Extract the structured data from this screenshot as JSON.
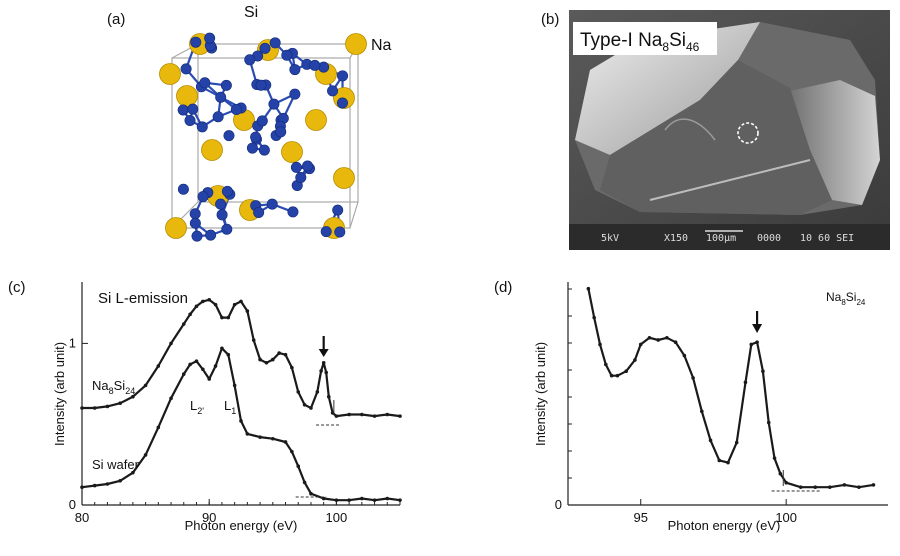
{
  "panel_labels": {
    "a": "(a)",
    "b": "(b)",
    "c": "(c)",
    "d": "(d)"
  },
  "panel_a": {
    "si_label": "Si",
    "na_label": "Na",
    "colors": {
      "si": "#2442a8",
      "na": "#e8b90c",
      "edge": "#a9a9a9"
    }
  },
  "panel_b": {
    "title_main": "Type-I Na",
    "title_sub1": "8",
    "title_mid": "Si",
    "title_sub2": "46",
    "footer": [
      "5kV",
      "X150",
      "100µm",
      "0000",
      "10 60 SEI"
    ]
  },
  "chart_data": [
    {
      "type": "line",
      "panel": "c",
      "annotation": "Si L-emission",
      "xlabel": "Photon energy (eV)",
      "ylabel": "Intensity (arb unit)",
      "xlim": [
        80,
        105
      ],
      "ylim": [
        0,
        1.38
      ],
      "xticks": [
        80,
        90,
        100
      ],
      "yticks": [
        0,
        1
      ],
      "tick_labels_x": [
        "80",
        "90",
        "100"
      ],
      "tick_labels_y": [
        "0",
        "1"
      ],
      "series": [
        {
          "name_main": "Na",
          "name_sub1": "8",
          "name_mid": "Si",
          "name_sub2": "24",
          "x": [
            80,
            81,
            82,
            83,
            84,
            85,
            86,
            87,
            88,
            88.5,
            89,
            89.5,
            90,
            90.5,
            91,
            91.5,
            92,
            92.5,
            93,
            93.5,
            94,
            94.5,
            95,
            95.5,
            96,
            96.5,
            97,
            97.5,
            98,
            98.5,
            98.8,
            99,
            99.2,
            99.4,
            99.7,
            100,
            101,
            102,
            103,
            104,
            105
          ],
          "y": [
            0.6,
            0.6,
            0.61,
            0.63,
            0.67,
            0.74,
            0.86,
            1.0,
            1.12,
            1.18,
            1.23,
            1.26,
            1.27,
            1.24,
            1.16,
            1.16,
            1.24,
            1.26,
            1.2,
            1.02,
            0.9,
            0.88,
            0.9,
            0.94,
            0.93,
            0.85,
            0.7,
            0.62,
            0.6,
            0.7,
            0.83,
            0.88,
            0.82,
            0.67,
            0.57,
            0.55,
            0.56,
            0.56,
            0.55,
            0.56,
            0.55
          ]
        },
        {
          "name": "Si wafer",
          "x": [
            80,
            81,
            82,
            83,
            84,
            85,
            86,
            87,
            88,
            88.5,
            89,
            89.5,
            90,
            90.5,
            91,
            91.5,
            92,
            92.5,
            93,
            94,
            95,
            96,
            96.5,
            97,
            97.5,
            98,
            99,
            100,
            101,
            102,
            103,
            104,
            105
          ],
          "y": [
            0.11,
            0.12,
            0.13,
            0.15,
            0.2,
            0.31,
            0.48,
            0.66,
            0.81,
            0.87,
            0.89,
            0.84,
            0.78,
            0.86,
            0.97,
            0.93,
            0.74,
            0.52,
            0.44,
            0.42,
            0.41,
            0.39,
            0.33,
            0.24,
            0.14,
            0.07,
            0.04,
            0.03,
            0.03,
            0.04,
            0.03,
            0.04,
            0.03
          ]
        }
      ],
      "annotations": {
        "peak_L2": "L",
        "peak_L2_sub": "2'",
        "peak_L1": "L",
        "peak_L1_sub": "1",
        "arrow_x": 99
      }
    },
    {
      "type": "line",
      "panel": "d",
      "legend_main": "Na",
      "legend_sub1": "8",
      "legend_mid": "Si",
      "legend_sub2": "24",
      "xlabel": "Photon energy (eV)",
      "ylabel": "Intensity (arb unit)",
      "xlim": [
        92.5,
        103.5
      ],
      "ylim": [
        0,
        1.0
      ],
      "xticks": [
        95,
        100
      ],
      "yticks": [
        0
      ],
      "tick_labels_x": [
        "95",
        "100"
      ],
      "tick_labels_y": [
        "0"
      ],
      "series": [
        {
          "name": "Na8Si24",
          "x": [
            93.2,
            93.4,
            93.6,
            93.8,
            94.0,
            94.2,
            94.5,
            94.8,
            95.0,
            95.3,
            95.6,
            95.9,
            96.2,
            96.5,
            96.8,
            97.1,
            97.4,
            97.7,
            98.0,
            98.3,
            98.6,
            98.8,
            99.0,
            99.2,
            99.4,
            99.6,
            99.8,
            100.0,
            100.5,
            101,
            101.5,
            102,
            102.5,
            103.0
          ],
          "y": [
            0.97,
            0.84,
            0.72,
            0.63,
            0.58,
            0.58,
            0.6,
            0.65,
            0.72,
            0.75,
            0.74,
            0.75,
            0.73,
            0.67,
            0.57,
            0.42,
            0.29,
            0.2,
            0.19,
            0.28,
            0.55,
            0.72,
            0.73,
            0.6,
            0.37,
            0.21,
            0.14,
            0.1,
            0.08,
            0.08,
            0.08,
            0.09,
            0.08,
            0.09
          ]
        }
      ],
      "arrow_x": 99.0
    }
  ]
}
